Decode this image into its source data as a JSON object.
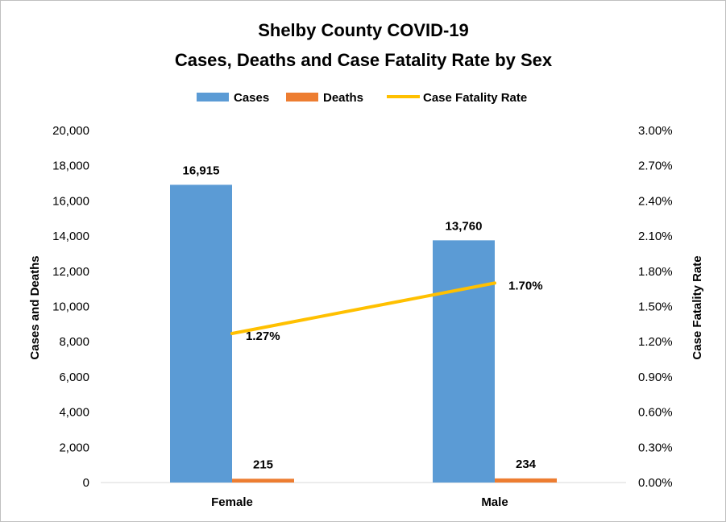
{
  "chart_data": {
    "type": "bar",
    "title": "Shelby County COVID-19",
    "subtitle": "Cases, Deaths and Case Fatality Rate by Sex",
    "categories": [
      "Female",
      "Male"
    ],
    "series": [
      {
        "name": "Cases",
        "type": "bar",
        "axis": "left",
        "color": "#5b9bd5",
        "values": [
          16915,
          13760
        ],
        "labels": [
          "16,915",
          "13,760"
        ]
      },
      {
        "name": "Deaths",
        "type": "bar",
        "axis": "left",
        "color": "#ed7d31",
        "values": [
          215,
          234
        ],
        "labels": [
          "215",
          "234"
        ]
      },
      {
        "name": "Case Fatality Rate",
        "type": "line",
        "axis": "right",
        "color": "#ffc000",
        "values": [
          1.27,
          1.7
        ],
        "labels": [
          "1.27%",
          "1.70%"
        ]
      }
    ],
    "ylabel": "Cases and Deaths",
    "y2label": "Case Fatality Rate",
    "ylim": [
      0,
      20000
    ],
    "y2lim": [
      0,
      3.0
    ],
    "yticks": [
      "0",
      "2,000",
      "4,000",
      "6,000",
      "8,000",
      "10,000",
      "12,000",
      "14,000",
      "16,000",
      "18,000",
      "20,000"
    ],
    "y2ticks": [
      "0.00%",
      "0.30%",
      "0.60%",
      "0.90%",
      "1.20%",
      "1.50%",
      "1.80%",
      "2.10%",
      "2.40%",
      "2.70%",
      "3.00%"
    ],
    "grid": false,
    "legend_position": "top"
  }
}
